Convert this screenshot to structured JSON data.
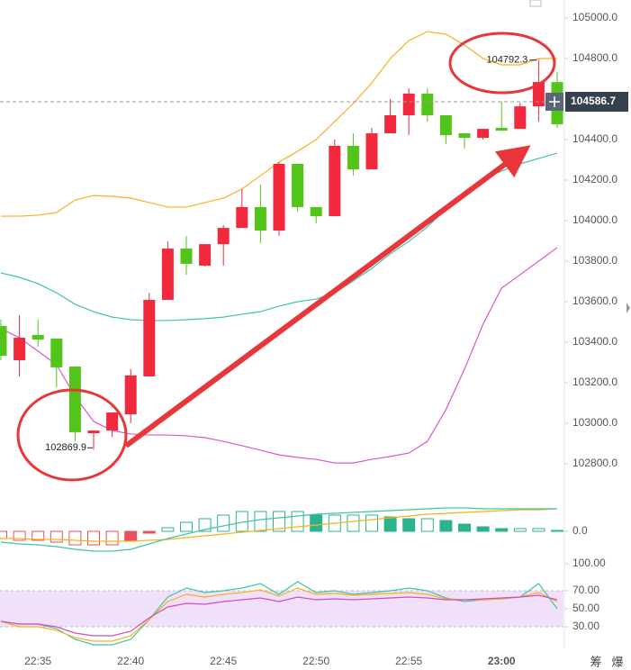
{
  "chart_data": [
    {
      "type": "candlestick",
      "categories": [
        null,
        null,
        "22:35",
        null,
        null,
        null,
        null,
        "22:40",
        null,
        null,
        null,
        null,
        "22:45",
        null,
        null,
        null,
        null,
        "22:50",
        null,
        null,
        null,
        null,
        "22:55",
        null,
        null,
        null,
        null,
        "23:00",
        null,
        null,
        null
      ],
      "open": [
        103480,
        103311,
        103436,
        103418,
        103280,
        102951,
        102964,
        103044,
        103231,
        103609,
        103862,
        103778,
        103884,
        103964,
        104067,
        103951,
        104280,
        104067,
        104022,
        104369,
        104253,
        104431,
        104520,
        104627,
        104520,
        104431,
        104409,
        104458,
        104453,
        104564,
        104684
      ],
      "high": [
        103511,
        103533,
        103511,
        103418,
        103280,
        102964,
        103053,
        103267,
        103644,
        103898,
        103924,
        103884,
        103978,
        104156,
        104178,
        104289,
        104280,
        104067,
        104400,
        104431,
        104458,
        104600,
        104653,
        104653,
        104520,
        104431,
        104453,
        104587,
        104582,
        104792.3,
        104733
      ],
      "low": [
        103311,
        103231,
        103378,
        103178,
        102911,
        102869.9,
        102933,
        103000,
        103231,
        103609,
        103733,
        103773,
        103778,
        103964,
        103889,
        103924,
        104044,
        103987,
        104022,
        104222,
        104253,
        104431,
        104422,
        104489,
        104378,
        104356,
        104400,
        104444,
        104453,
        104489,
        104458
      ],
      "close": [
        103333,
        103422,
        103413,
        103276,
        102956,
        102964,
        103053,
        103236,
        103609,
        103862,
        103787,
        103884,
        103964,
        104067,
        103951,
        104280,
        104067,
        104022,
        104369,
        104253,
        104431,
        104520,
        104627,
        104520,
        104422,
        104409,
        104453,
        104444,
        104564,
        104684,
        104476
      ],
      "up_color": "#f2283d",
      "down_color": "#52c41a",
      "series": [
        {
          "color": "#f5b21c",
          "values": [
            104022,
            104022,
            104027,
            104040,
            104102,
            104124,
            104120,
            104111,
            104089,
            104067,
            104067,
            104089,
            104111,
            104156,
            104222,
            104289,
            104342,
            104400,
            104489,
            104578,
            104680,
            104800,
            104889,
            104933,
            104920,
            104867,
            104800,
            104769,
            104769,
            104800,
            104800
          ]
        },
        {
          "color": "#3cc6a8",
          "values": [
            103742,
            103720,
            103689,
            103644,
            103587,
            103551,
            103524,
            103511,
            103507,
            103507,
            103511,
            103516,
            103524,
            103538,
            103551,
            103578,
            103600,
            103613,
            103644,
            103702,
            103764,
            103836,
            103898,
            103969,
            104058,
            104138,
            104209,
            104244,
            104280,
            104307,
            104333
          ]
        },
        {
          "color": "#e056c8",
          "values": [
            103467,
            103422,
            103356,
            103289,
            103133,
            103009,
            102964,
            102947,
            102942,
            102942,
            102938,
            102929,
            102911,
            102889,
            102867,
            102844,
            102831,
            102822,
            102804,
            102804,
            102822,
            102836,
            102853,
            102911,
            103067,
            103267,
            103489,
            103667,
            103733,
            103800,
            103867
          ]
        }
      ],
      "last_price": 104586.7,
      "ylim": [
        102800,
        105000
      ],
      "yticks": [
        {
          "value": 102800,
          "label": "102800.0"
        },
        {
          "value": 103000,
          "label": "103000.0"
        },
        {
          "value": 103200,
          "label": "103200.0"
        },
        {
          "value": 103400,
          "label": "103400.0"
        },
        {
          "value": 103600,
          "label": "103600.0"
        },
        {
          "value": 103800,
          "label": "103800.0"
        },
        {
          "value": 104000,
          "label": "104000.0"
        },
        {
          "value": 104200,
          "label": "104200.0"
        },
        {
          "value": 104400,
          "label": "104400.0"
        },
        {
          "value": 104600,
          "label": "104600.0"
        },
        {
          "value": 104800,
          "label": "104800.0"
        },
        {
          "value": 105000,
          "label": "105000.0"
        }
      ]
    },
    {
      "type": "macd",
      "values": [
        -8,
        -10,
        -10,
        -12,
        -15,
        -15,
        -15,
        -10,
        -2,
        4,
        10,
        14,
        18,
        22,
        22,
        22,
        22,
        18,
        18,
        18,
        18,
        16,
        14,
        14,
        12,
        8,
        5,
        3,
        3,
        3,
        1
      ],
      "up_color": "#2bb38f",
      "down_color": "#e8505b",
      "series": [
        {
          "color": "#f5b21c",
          "values": [
            -8,
            -8,
            -9,
            -9,
            -10,
            -11,
            -11,
            -11,
            -10,
            -9,
            -7,
            -5,
            -3,
            -1,
            1,
            3,
            5,
            7,
            9,
            11,
            13,
            15,
            17,
            19,
            20,
            21,
            22,
            23,
            24,
            24,
            25
          ]
        },
        {
          "color": "#3cc6a8",
          "values": [
            -12,
            -14,
            -15,
            -17,
            -20,
            -22,
            -22,
            -20,
            -14,
            -8,
            -3,
            2,
            6,
            10,
            13,
            15,
            17,
            19,
            20,
            21,
            22,
            23,
            24,
            25,
            26,
            26,
            25,
            25,
            25,
            25,
            25
          ]
        }
      ],
      "ylim": [
        -20,
        30
      ],
      "yticks": [
        {
          "value": 0,
          "label": "0.0"
        }
      ]
    },
    {
      "type": "line",
      "band": [
        30,
        70
      ],
      "band_color": "#f1e0fa",
      "series": [
        {
          "color": "#3cc6a8",
          "values": [
            36,
            33,
            33,
            28,
            16,
            10,
            10,
            16,
            38,
            63,
            73,
            68,
            70,
            73,
            78,
            66,
            80,
            68,
            70,
            66,
            68,
            70,
            73,
            70,
            62,
            58,
            60,
            61,
            63,
            78,
            50
          ]
        },
        {
          "color": "#f5b21c",
          "values": [
            36,
            30,
            30,
            26,
            18,
            14,
            14,
            20,
            38,
            58,
            66,
            63,
            66,
            68,
            71,
            64,
            73,
            66,
            67,
            65,
            66,
            67,
            68,
            66,
            61,
            60,
            60,
            61,
            63,
            68,
            58
          ]
        },
        {
          "color": "#d04fc0",
          "values": [
            36,
            33,
            33,
            30,
            23,
            20,
            20,
            25,
            40,
            52,
            56,
            55,
            58,
            60,
            62,
            58,
            63,
            60,
            61,
            60,
            61,
            62,
            63,
            62,
            60,
            60,
            61,
            62,
            63,
            65,
            60
          ]
        }
      ],
      "ylim": [
        8,
        100
      ],
      "yticks": [
        {
          "value": 100,
          "label": "100.00"
        },
        {
          "value": 70,
          "label": "70.00"
        },
        {
          "value": 50,
          "label": "50.00"
        },
        {
          "value": 30,
          "label": "30.00"
        }
      ]
    }
  ],
  "toolbar": [
    "筹",
    "爆"
  ]
}
